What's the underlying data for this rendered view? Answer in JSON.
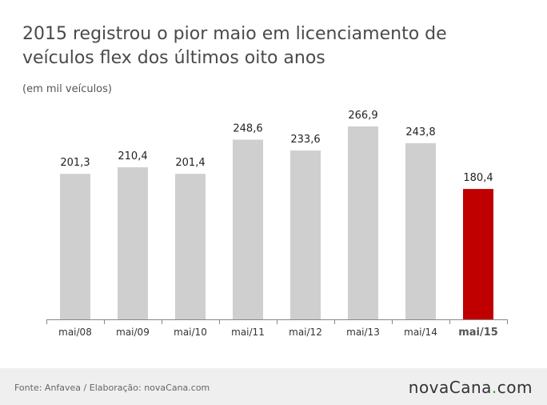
{
  "chart_data": {
    "type": "bar",
    "title": "2015 registrou o pior maio em licenciamento de veículos flex dos últimos oito anos",
    "subtitle": "(em mil veículos)",
    "categories": [
      "mai/08",
      "mai/09",
      "mai/10",
      "mai/11",
      "mai/12",
      "mai/13",
      "mai/14",
      "mai/15"
    ],
    "values": [
      201.3,
      210.4,
      201.4,
      248.6,
      233.6,
      266.9,
      243.8,
      180.4
    ],
    "value_labels": [
      "201,3",
      "210,4",
      "201,4",
      "248,6",
      "233,6",
      "266,9",
      "243,8",
      "180,4"
    ],
    "highlight_index": 7,
    "ylim": [
      0,
      266.9
    ],
    "grid": false,
    "colors": {
      "bar": "#d0cfcf",
      "highlight": "#c00000",
      "axis": "#888888",
      "label": "#222222"
    }
  },
  "footer": {
    "source": "Fonte: Anfavea / Elaboração: novaCana.com",
    "logo_name": "novaCana",
    "logo_dot": ".",
    "logo_tld": "com"
  }
}
